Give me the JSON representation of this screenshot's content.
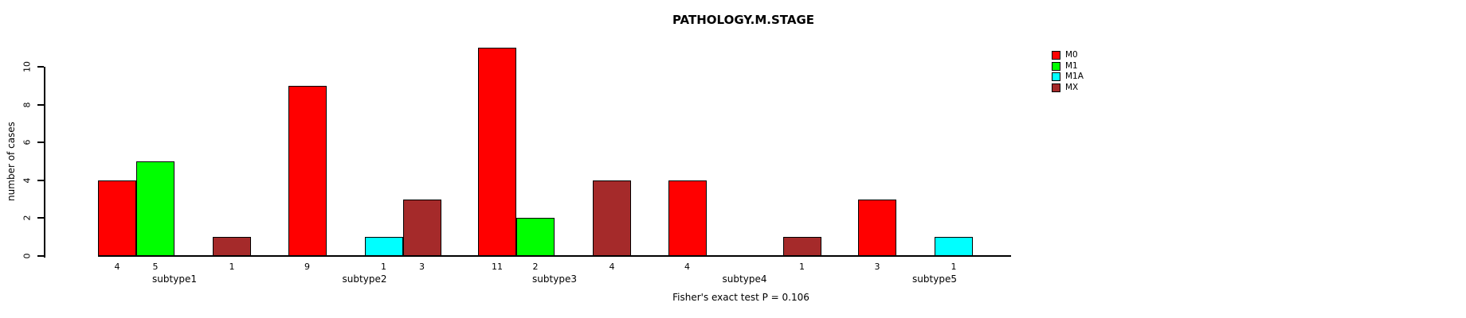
{
  "chart_data": {
    "type": "bar",
    "title": "PATHOLOGY.M.STAGE",
    "ylabel": "number of cases",
    "footer": "Fisher's exact test P = 0.106",
    "categories": [
      "subtype1",
      "subtype2",
      "subtype3",
      "subtype4",
      "subtype5"
    ],
    "series": [
      {
        "name": "M0",
        "color": "#FF0000",
        "values": [
          4,
          9,
          11,
          4,
          3
        ]
      },
      {
        "name": "M1",
        "color": "#00FF00",
        "values": [
          5,
          0,
          2,
          0,
          0
        ]
      },
      {
        "name": "M1A",
        "color": "#00FFFF",
        "values": [
          0,
          1,
          0,
          0,
          1
        ]
      },
      {
        "name": "MX",
        "color": "#A52A2A",
        "values": [
          1,
          3,
          4,
          1,
          0
        ]
      }
    ],
    "y_ticks": [
      0,
      2,
      4,
      6,
      8,
      10
    ],
    "ylim": [
      0,
      11
    ],
    "bar_value_labels_shown": true,
    "zero_bars_hidden": true,
    "legend_position": "right",
    "grid": false,
    "axis_color": "#000000",
    "background_color": "#FFFFFF"
  }
}
